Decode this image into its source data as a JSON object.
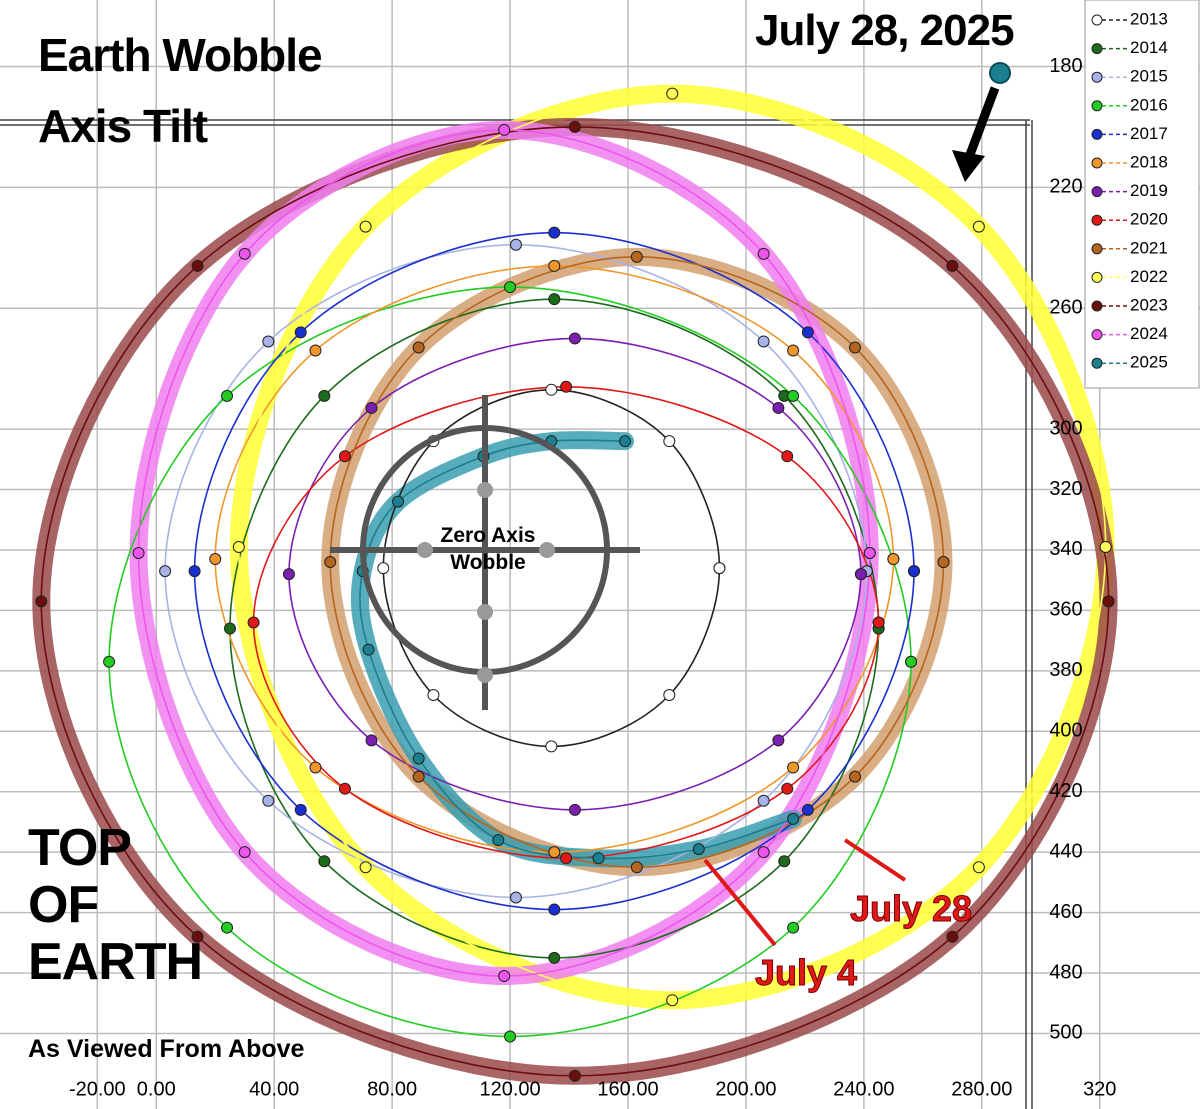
{
  "chart_data": {
    "type": "line",
    "title": "Earth Wobble Axis Tilt",
    "annotations": [
      "July 28, 2025",
      "Zero Axis Wobble",
      "TOP OF EARTH",
      "As Viewed From Above",
      "July 28",
      "July 4"
    ],
    "xlim": [
      -53,
      354
    ],
    "ylim": [
      525,
      158
    ],
    "xticks": [
      {
        "value": -20,
        "label": "-20.00"
      },
      {
        "value": 0,
        "label": "0.00"
      },
      {
        "value": 40,
        "label": "40.00"
      },
      {
        "value": 80,
        "label": "80.00"
      },
      {
        "value": 120,
        "label": "120.00"
      },
      {
        "value": 160,
        "label": "160.00"
      },
      {
        "value": 200,
        "label": "200.00"
      },
      {
        "value": 240,
        "label": "240.00"
      },
      {
        "value": 280,
        "label": "280.00"
      },
      {
        "value": 320,
        "label": "320"
      }
    ],
    "yticks": [
      180,
      220,
      260,
      300,
      320,
      340,
      360,
      380,
      400,
      420,
      440,
      460,
      480,
      500
    ],
    "grid": true,
    "legend": "top-right",
    "series": [
      {
        "name": "2013",
        "color": "#ffffff",
        "line_color": "#222222",
        "x": [
          191,
          174,
          134,
          94,
          77,
          94,
          134,
          174,
          191
        ],
        "y": [
          346,
          388,
          405,
          388,
          346,
          304,
          287,
          304,
          346
        ]
      },
      {
        "name": "2014",
        "color": "#1b6b1b",
        "x": [
          245,
          213,
          135,
          57,
          25,
          57,
          135,
          213,
          245
        ],
        "y": [
          366,
          443,
          475,
          443,
          366,
          289,
          257,
          289,
          366
        ]
      },
      {
        "name": "2015",
        "color": "#a7b3e8",
        "x": [
          241,
          206,
          122,
          38,
          3,
          38,
          122,
          206,
          241
        ],
        "y": [
          347,
          423,
          455,
          423,
          347,
          271,
          239,
          271,
          347
        ]
      },
      {
        "name": "2016",
        "color": "#22cc22",
        "x": [
          256,
          216,
          120,
          24,
          -16,
          24,
          120,
          216,
          256
        ],
        "y": [
          377,
          465,
          501,
          465,
          377,
          289,
          253,
          289,
          377
        ]
      },
      {
        "name": "2017",
        "color": "#1a2fcf",
        "x": [
          257,
          221,
          135,
          49,
          13,
          49,
          135,
          221,
          257
        ],
        "y": [
          347,
          426,
          459,
          426,
          347,
          268,
          235,
          268,
          347
        ]
      },
      {
        "name": "2018",
        "color": "#f0962a",
        "x": [
          250,
          216,
          135,
          54,
          20,
          54,
          135,
          216,
          250
        ],
        "y": [
          343,
          412,
          440,
          412,
          343,
          274,
          246,
          274,
          343
        ]
      },
      {
        "name": "2019",
        "color": "#7a1fb0",
        "x": [
          239,
          211,
          142,
          73,
          45,
          73,
          142,
          211,
          239
        ],
        "y": [
          348,
          403,
          426,
          403,
          348,
          293,
          270,
          293,
          348
        ]
      },
      {
        "name": "2020",
        "color": "#e01818",
        "x": [
          245,
          214,
          139,
          64,
          33,
          64,
          139,
          214,
          245
        ],
        "y": [
          364,
          419,
          442,
          419,
          364,
          309,
          286,
          309,
          364
        ]
      },
      {
        "name": "2021",
        "color": "#b5651d",
        "highlight": "#d2a06e",
        "x": [
          267,
          237,
          163,
          89,
          59,
          89,
          163,
          237,
          267
        ],
        "y": [
          344,
          415,
          445,
          415,
          344,
          273,
          243,
          273,
          344
        ]
      },
      {
        "name": "2022",
        "color": "#ffff55",
        "highlight": "#ffff33",
        "x": [
          322,
          279,
          175,
          71,
          28,
          71,
          175,
          279,
          322
        ],
        "y": [
          339,
          445,
          489,
          445,
          339,
          233,
          189,
          233,
          339
        ]
      },
      {
        "name": "2023",
        "color": "#6b0e0e",
        "highlight": "#9a4a4a",
        "x": [
          323,
          270,
          142,
          14,
          -39,
          14,
          142,
          270,
          323
        ],
        "y": [
          357,
          468,
          514,
          468,
          357,
          246,
          200,
          246,
          357
        ]
      },
      {
        "name": "2024",
        "color": "#ee55ee",
        "highlight": "#f07ef0",
        "x": [
          242,
          206,
          118,
          30,
          -6,
          30,
          118,
          206,
          242
        ],
        "y": [
          341,
          440,
          481,
          440,
          341,
          242,
          201,
          242,
          341
        ]
      },
      {
        "name": "2025",
        "color": "#1a7f8f",
        "highlight": "#3a9fb0",
        "x": [
          159,
          134,
          111,
          82,
          70,
          72,
          89,
          116,
          150,
          184,
          216
        ],
        "y": [
          304,
          304,
          309,
          324,
          347,
          373,
          409,
          436,
          442,
          439,
          429
        ]
      }
    ]
  }
}
